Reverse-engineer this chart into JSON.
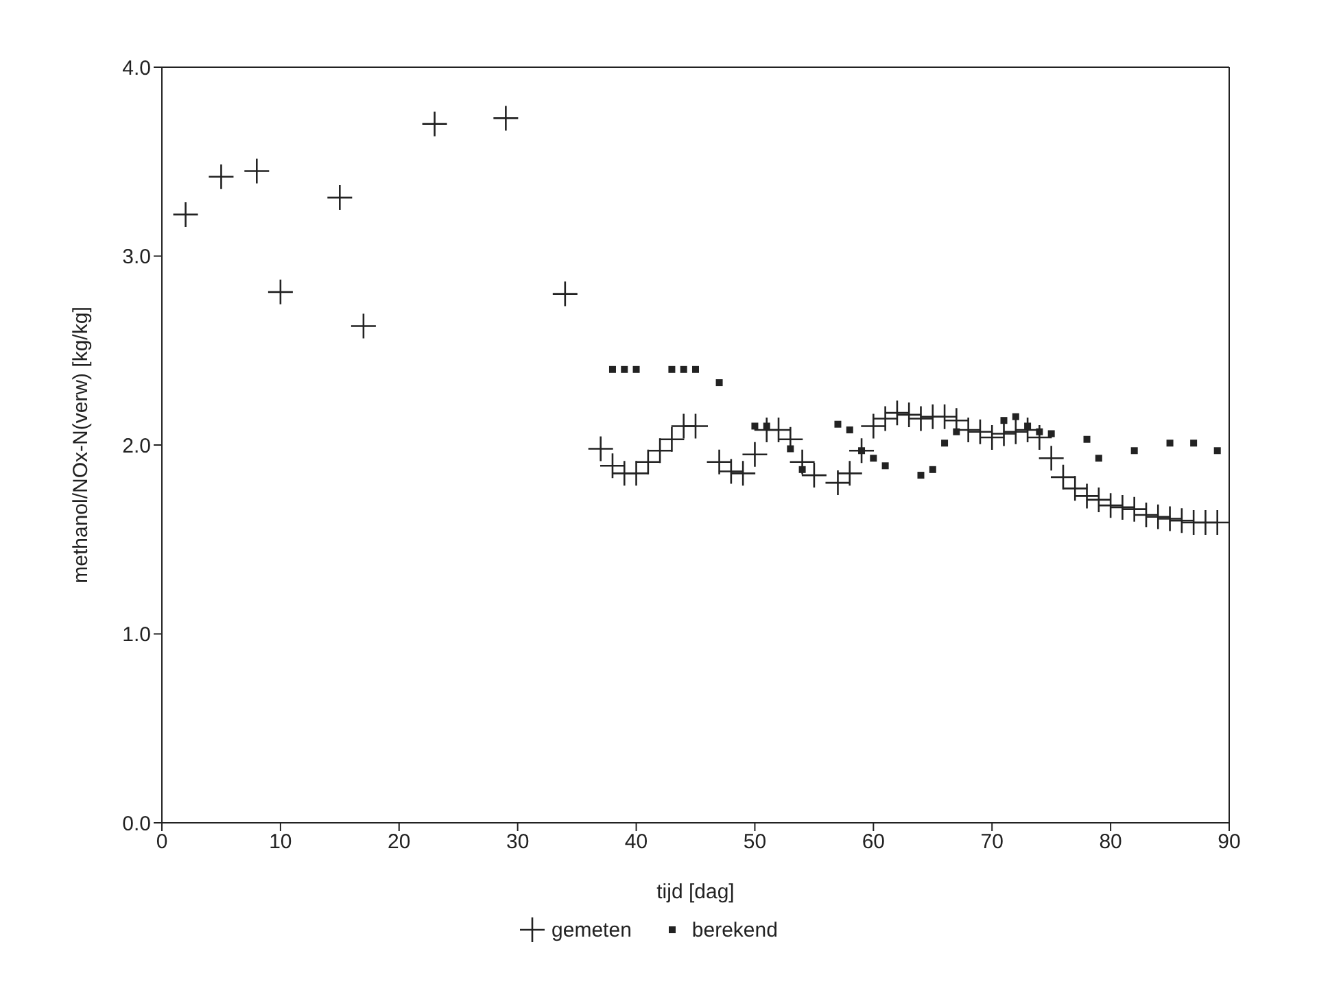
{
  "chart_data": {
    "type": "scatter",
    "xlabel": "tijd [dag]",
    "ylabel": "methanol/NOx-N(verw) [kg/kg]",
    "xlim": [
      0,
      90
    ],
    "xticks": [
      0,
      10,
      20,
      30,
      40,
      50,
      60,
      70,
      80,
      90
    ],
    "ylim": [
      0,
      4
    ],
    "yticks": [
      {
        "value": 0,
        "label": "0.0"
      },
      {
        "value": 1,
        "label": "1.0"
      },
      {
        "value": 2,
        "label": "2.0"
      },
      {
        "value": 3,
        "label": "3.0"
      },
      {
        "value": 4,
        "label": "4.0"
      }
    ],
    "grid": false,
    "legend": "bottom",
    "series": [
      {
        "name": "gemeten",
        "color": "#222222",
        "marker": "cross",
        "x": [
          2,
          5,
          8,
          10,
          15,
          17,
          23,
          29,
          34,
          37,
          38,
          39,
          40,
          41,
          42,
          43,
          44,
          45,
          47,
          48,
          49,
          50,
          51,
          52,
          53,
          54,
          55,
          57,
          58,
          59,
          60,
          61,
          62,
          63,
          64,
          65,
          66,
          67,
          68,
          69,
          70,
          71,
          72,
          73,
          74,
          75,
          76,
          77,
          78,
          79,
          80,
          81,
          82,
          83,
          84,
          85,
          86,
          87,
          88,
          89
        ],
        "values": [
          3.22,
          3.42,
          3.45,
          2.81,
          3.31,
          2.63,
          3.7,
          3.73,
          2.8,
          1.98,
          1.89,
          1.85,
          1.85,
          1.91,
          1.97,
          2.03,
          2.1,
          2.1,
          1.91,
          1.86,
          1.85,
          1.95,
          2.08,
          2.08,
          2.03,
          1.91,
          1.84,
          1.8,
          1.85,
          1.97,
          2.1,
          2.14,
          2.17,
          2.16,
          2.14,
          2.15,
          2.15,
          2.13,
          2.08,
          2.07,
          2.04,
          2.06,
          2.07,
          2.08,
          2.04,
          1.93,
          1.83,
          1.77,
          1.73,
          1.71,
          1.68,
          1.67,
          1.66,
          1.63,
          1.62,
          1.61,
          1.6,
          1.59,
          1.59,
          1.59
        ]
      },
      {
        "name": "berekend",
        "color": "#222222",
        "marker": "square",
        "x": [
          38,
          39,
          40,
          43,
          44,
          45,
          47,
          50,
          51,
          53,
          54,
          57,
          58,
          59,
          60,
          61,
          64,
          65,
          66,
          67,
          71,
          72,
          73,
          74,
          75,
          78,
          79,
          82,
          85,
          87,
          89
        ],
        "values": [
          2.4,
          2.4,
          2.4,
          2.4,
          2.4,
          2.4,
          2.33,
          2.1,
          2.1,
          1.98,
          1.87,
          2.11,
          2.08,
          1.97,
          1.93,
          1.89,
          1.84,
          1.87,
          2.01,
          2.07,
          2.13,
          2.15,
          2.1,
          2.07,
          2.06,
          2.03,
          1.93,
          1.97,
          2.01,
          2.01,
          1.97
        ]
      }
    ]
  }
}
